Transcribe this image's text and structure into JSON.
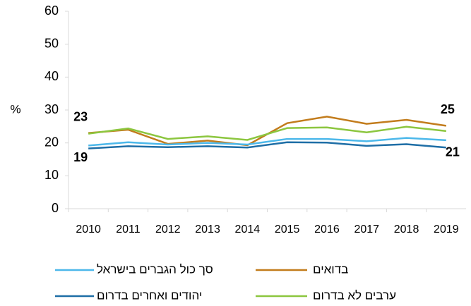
{
  "chart_data": {
    "type": "line",
    "y_label": "%",
    "categories": [
      "2010",
      "2011",
      "2012",
      "2013",
      "2014",
      "2015",
      "2016",
      "2017",
      "2018",
      "2019"
    ],
    "series": [
      {
        "name": "בדואים",
        "color": "#c27c1c",
        "values": [
          23,
          24,
          19.7,
          20.7,
          19.3,
          26,
          28,
          25.8,
          27,
          25.2
        ],
        "value_labels": [
          "23",
          null,
          null,
          null,
          null,
          null,
          null,
          null,
          null,
          "25"
        ]
      },
      {
        "name": "סך כול הגברים בישראל",
        "color": "#4cb8ea",
        "values": [
          19.2,
          20.2,
          19.5,
          20,
          19.5,
          21.2,
          21.2,
          20.5,
          21.5,
          20.8
        ],
        "value_labels": [
          "19",
          null,
          null,
          null,
          null,
          null,
          null,
          null,
          null,
          "21"
        ]
      },
      {
        "name": "ערבים לא בדרום",
        "color": "#8cc63f",
        "values": [
          22.8,
          24.4,
          21.2,
          22,
          20.9,
          24.5,
          24.7,
          23.2,
          24.9,
          23.6
        ]
      },
      {
        "name": "יהודים ואחרים בדרום",
        "color": "#1e6ea6",
        "values": [
          18.3,
          19,
          18.7,
          19,
          18.6,
          20.2,
          20.1,
          19.1,
          19.6,
          18.6
        ]
      }
    ],
    "ylim": [
      0,
      60
    ],
    "yticks": [
      0,
      10,
      20,
      30,
      40,
      50,
      60
    ],
    "grid": false
  }
}
